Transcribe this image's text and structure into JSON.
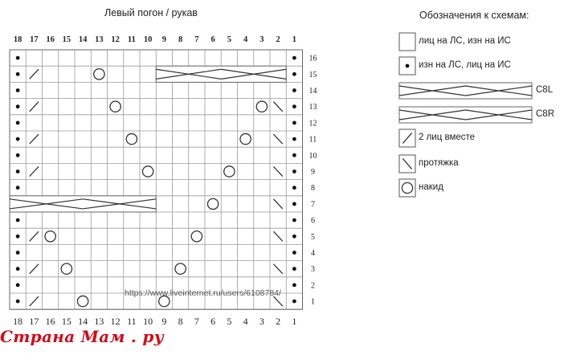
{
  "title": "Левый погон / рукав",
  "legend": {
    "title": "Обозначения к схемам:",
    "items": [
      {
        "symbol": "blank",
        "label": "лиц на ЛС, изн на ИС"
      },
      {
        "symbol": "dot",
        "label": "изн на ЛС, лиц на ИС"
      },
      {
        "symbol": "cable-left",
        "label": "C8L"
      },
      {
        "symbol": "cable-right",
        "label": "C8R"
      },
      {
        "symbol": "k2tog",
        "label": "2 лиц вместе"
      },
      {
        "symbol": "ssk",
        "label": "протяжка"
      },
      {
        "symbol": "yo",
        "label": "накид"
      }
    ]
  },
  "chart": {
    "columns": [
      18,
      17,
      16,
      15,
      14,
      13,
      12,
      11,
      10,
      9,
      8,
      7,
      6,
      5,
      4,
      3,
      2,
      1
    ],
    "rows": [
      16,
      15,
      14,
      13,
      12,
      11,
      10,
      9,
      8,
      7,
      6,
      5,
      4,
      3,
      2,
      1
    ],
    "cells": [
      {
        "row": 15,
        "col": 17,
        "symbol": "k2tog"
      },
      {
        "row": 15,
        "col": 13,
        "symbol": "yo"
      },
      {
        "row": 13,
        "col": 17,
        "symbol": "k2tog"
      },
      {
        "row": 13,
        "col": 12,
        "symbol": "yo"
      },
      {
        "row": 13,
        "col": 3,
        "symbol": "yo"
      },
      {
        "row": 13,
        "col": 2,
        "symbol": "ssk"
      },
      {
        "row": 11,
        "col": 17,
        "symbol": "k2tog"
      },
      {
        "row": 11,
        "col": 11,
        "symbol": "yo"
      },
      {
        "row": 11,
        "col": 4,
        "symbol": "yo"
      },
      {
        "row": 11,
        "col": 2,
        "symbol": "ssk"
      },
      {
        "row": 9,
        "col": 17,
        "symbol": "k2tog"
      },
      {
        "row": 9,
        "col": 10,
        "symbol": "yo"
      },
      {
        "row": 9,
        "col": 5,
        "symbol": "yo"
      },
      {
        "row": 9,
        "col": 2,
        "symbol": "ssk"
      },
      {
        "row": 7,
        "col": 6,
        "symbol": "yo"
      },
      {
        "row": 7,
        "col": 2,
        "symbol": "ssk"
      },
      {
        "row": 5,
        "col": 17,
        "symbol": "k2tog"
      },
      {
        "row": 5,
        "col": 16,
        "symbol": "yo"
      },
      {
        "row": 5,
        "col": 7,
        "symbol": "yo"
      },
      {
        "row": 5,
        "col": 2,
        "symbol": "ssk"
      },
      {
        "row": 3,
        "col": 17,
        "symbol": "k2tog"
      },
      {
        "row": 3,
        "col": 15,
        "symbol": "yo"
      },
      {
        "row": 3,
        "col": 8,
        "symbol": "yo"
      },
      {
        "row": 3,
        "col": 2,
        "symbol": "ssk"
      },
      {
        "row": 1,
        "col": 17,
        "symbol": "k2tog"
      },
      {
        "row": 1,
        "col": 14,
        "symbol": "yo"
      },
      {
        "row": 1,
        "col": 9,
        "symbol": "yo"
      },
      {
        "row": 1,
        "col": 2,
        "symbol": "ssk"
      }
    ],
    "dot_columns": [
      18,
      1
    ],
    "cables": [
      {
        "row": 15,
        "from_col": 9,
        "to_col": 2,
        "symbol": "cable-left"
      },
      {
        "row": 7,
        "from_col": 18,
        "to_col": 10,
        "symbol": "cable-right"
      }
    ]
  },
  "watermark": "https://www.liveinternet.ru/users/6108784/",
  "brand": "Страна Мам . ру"
}
